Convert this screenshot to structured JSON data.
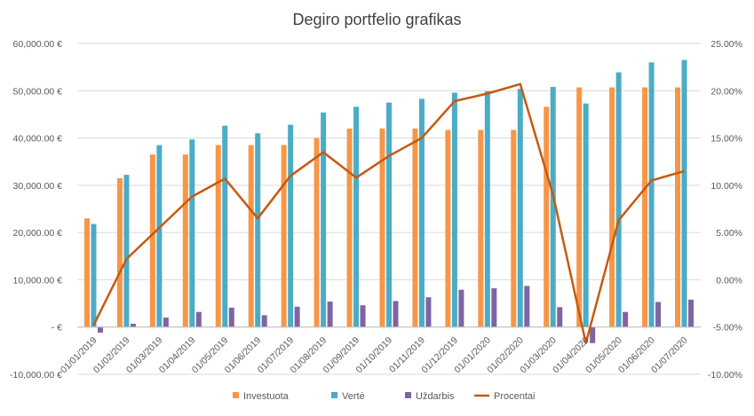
{
  "chart_data": {
    "type": "bar",
    "title": "Degiro portfelio grafikas",
    "xlabel": "",
    "ylabel": "",
    "categories": [
      "01/01/2019",
      "01/02/2019",
      "01/03/2019",
      "01/04/2019",
      "01/05/2019",
      "01/06/2019",
      "01/07/2019",
      "01/08/2019",
      "01/09/2019",
      "01/10/2019",
      "01/11/2019",
      "01/12/2019",
      "01/01/2020",
      "01/02/2020",
      "01/03/2020",
      "01/04/2020",
      "01/05/2020",
      "01/06/2020",
      "01/07/2020"
    ],
    "ylim": [
      -10000,
      60000
    ],
    "y2lim": [
      -10,
      25
    ],
    "y_ticks": [
      "-10,000.00 €",
      "-  €",
      "10,000.00 €",
      "20,000.00 €",
      "30,000.00 €",
      "40,000.00 €",
      "50,000.00 €",
      "60,000.00 €"
    ],
    "y2_ticks": [
      "-10.00%",
      "-5.00%",
      "0.00%",
      "5.00%",
      "10.00%",
      "15.00%",
      "20.00%",
      "25.00%"
    ],
    "grid": true,
    "legend_position": "bottom",
    "series": [
      {
        "name": "Investuota",
        "type": "bar",
        "axis": "left",
        "color": "#F79646",
        "values": [
          23000,
          31500,
          36500,
          36500,
          38500,
          38500,
          38500,
          40000,
          42000,
          42000,
          42000,
          41700,
          41700,
          41700,
          46600,
          50700,
          50700,
          50700,
          50700
        ]
      },
      {
        "name": "Vertė",
        "type": "bar",
        "axis": "left",
        "color": "#4BACC6",
        "values": [
          21800,
          32200,
          38500,
          39700,
          42600,
          41000,
          42800,
          45400,
          46600,
          47500,
          48300,
          49600,
          49900,
          50400,
          50800,
          47300,
          53900,
          56000,
          56500
        ]
      },
      {
        "name": "Uždarbis",
        "type": "bar",
        "axis": "left",
        "color": "#8064A2",
        "values": [
          -1200,
          700,
          2000,
          3200,
          4100,
          2500,
          4300,
          5400,
          4600,
          5500,
          6300,
          7900,
          8200,
          8700,
          4200,
          -3400,
          3200,
          5300,
          5800
        ]
      },
      {
        "name": "Procentai",
        "type": "line",
        "axis": "right",
        "color": "#C55A11",
        "values": [
          -4.8,
          2.2,
          5.5,
          8.8,
          10.7,
          6.5,
          11.0,
          13.5,
          10.8,
          13.1,
          15.0,
          18.9,
          19.7,
          20.7,
          9.0,
          -6.7,
          6.3,
          10.5,
          11.5
        ]
      }
    ]
  }
}
